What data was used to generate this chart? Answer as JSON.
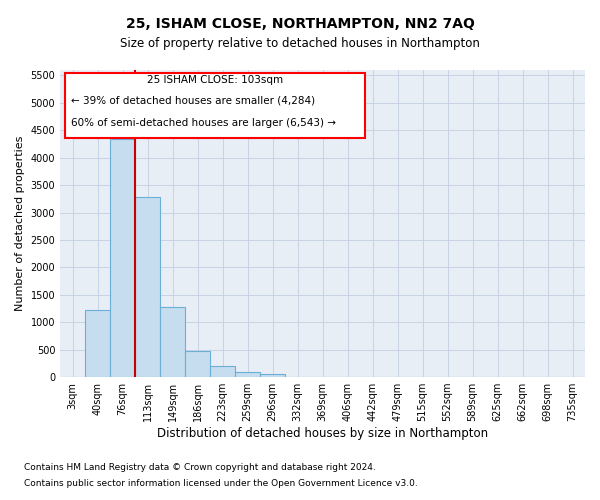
{
  "title": "25, ISHAM CLOSE, NORTHAMPTON, NN2 7AQ",
  "subtitle": "Size of property relative to detached houses in Northampton",
  "xlabel": "Distribution of detached houses by size in Northampton",
  "ylabel": "Number of detached properties",
  "footnote1": "Contains HM Land Registry data © Crown copyright and database right 2024.",
  "footnote2": "Contains public sector information licensed under the Open Government Licence v3.0.",
  "annotation_title": "25 ISHAM CLOSE: 103sqm",
  "annotation_line1": "← 39% of detached houses are smaller (4,284)",
  "annotation_line2": "60% of semi-detached houses are larger (6,543) →",
  "bar_color": "#c5ddef",
  "bar_edge_color": "#6baed6",
  "vline_color": "#cc0000",
  "grid_color": "#c8d4e4",
  "background_color": "#e8eef6",
  "categories": [
    "3sqm",
    "40sqm",
    "76sqm",
    "113sqm",
    "149sqm",
    "186sqm",
    "223sqm",
    "259sqm",
    "296sqm",
    "332sqm",
    "369sqm",
    "406sqm",
    "442sqm",
    "479sqm",
    "515sqm",
    "552sqm",
    "589sqm",
    "625sqm",
    "662sqm",
    "698sqm",
    "735sqm"
  ],
  "values": [
    0,
    1230,
    4350,
    3280,
    1270,
    480,
    200,
    100,
    55,
    0,
    0,
    0,
    0,
    0,
    0,
    0,
    0,
    0,
    0,
    0,
    0
  ],
  "vline_bar_index": 2,
  "vline_bar_side": "right",
  "ylim": [
    0,
    5600
  ],
  "yticks": [
    0,
    500,
    1000,
    1500,
    2000,
    2500,
    3000,
    3500,
    4000,
    4500,
    5000,
    5500
  ],
  "title_fontsize": 10,
  "subtitle_fontsize": 8.5,
  "ylabel_fontsize": 8,
  "xlabel_fontsize": 8.5,
  "tick_fontsize": 7,
  "footnote_fontsize": 6.5
}
